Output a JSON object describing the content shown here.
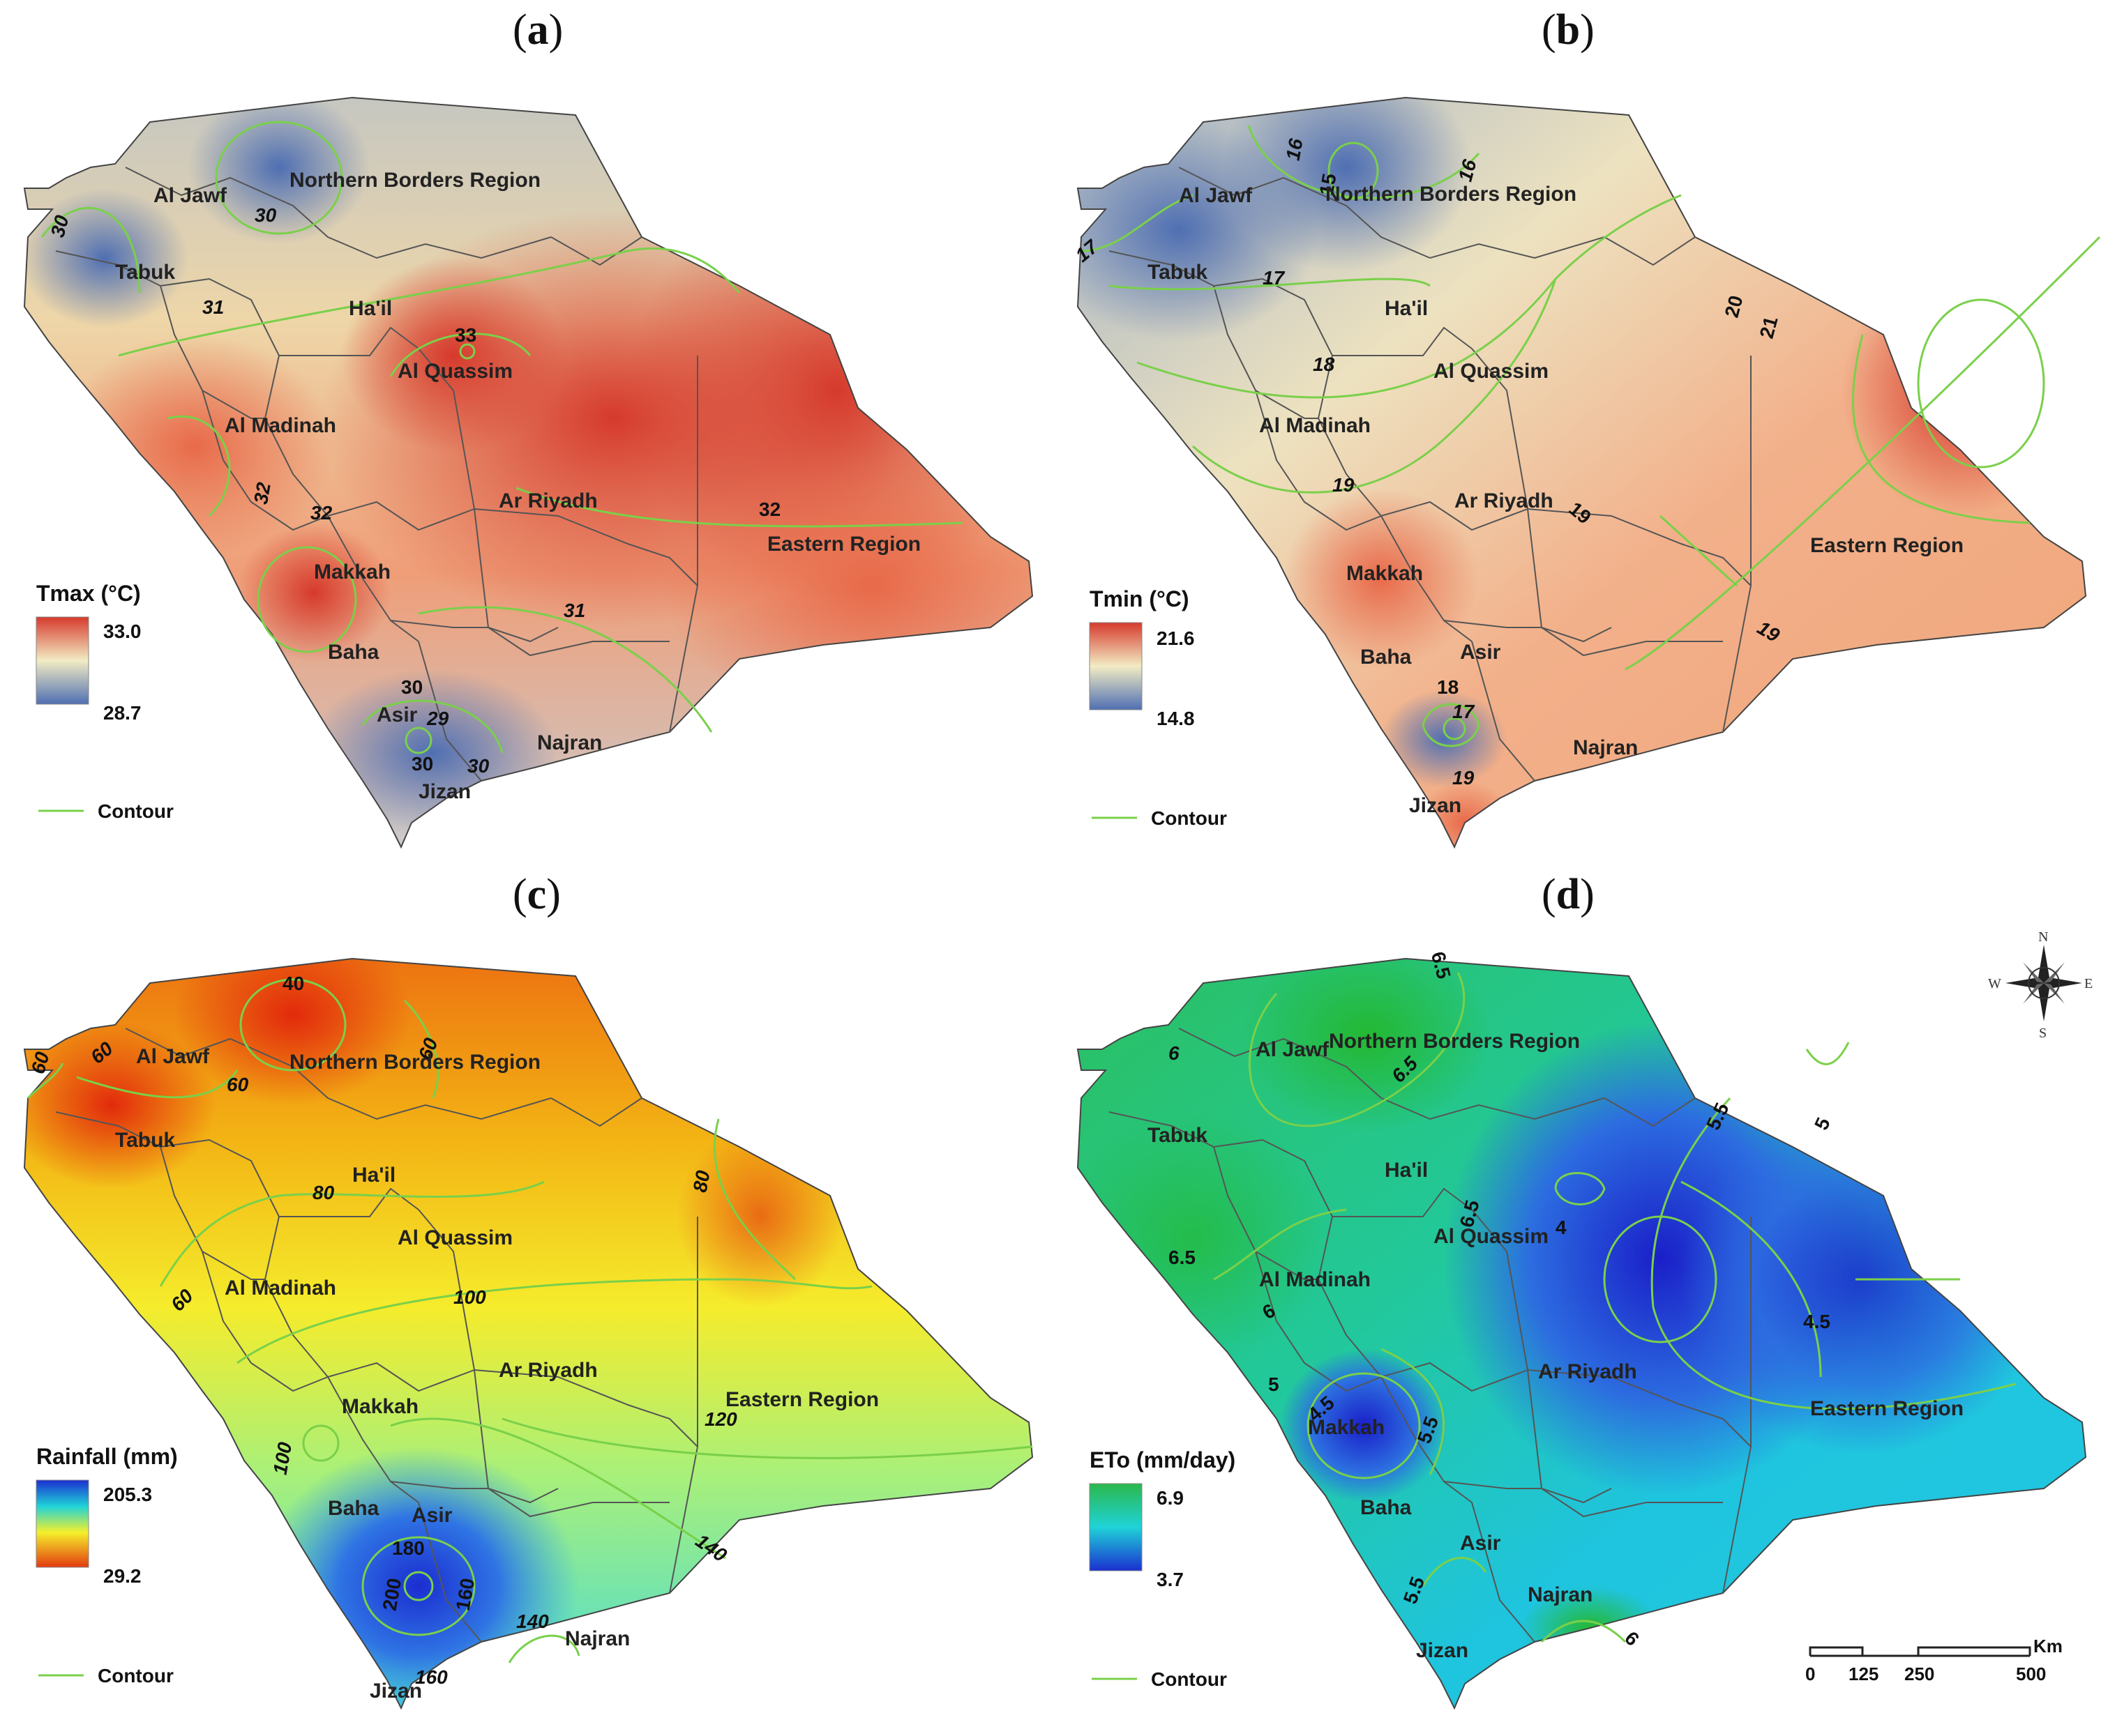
{
  "panels": [
    {
      "id": "a",
      "label": "a",
      "legend": {
        "title": "Tmax (°C)",
        "max": "33.0",
        "min": "28.7"
      },
      "colors": {
        "high": "#d94534",
        "mid": "#f2ecc4",
        "low": "#5979b5"
      },
      "contour_legend": "Contour",
      "regions": [
        "Al Jawf",
        "Northern Borders Region",
        "Tabuk",
        "Ha'il",
        "Al Quassim",
        "Al Madinah",
        "Ar Riyadh",
        "Eastern Region",
        "Makkah",
        "Baha",
        "Asir",
        "Najran",
        "Jizan"
      ],
      "contour_labels": [
        "30",
        "30",
        "31",
        "33",
        "32",
        "32",
        "32",
        "31",
        "30",
        "29",
        "30",
        "30"
      ]
    },
    {
      "id": "b",
      "label": "b",
      "legend": {
        "title": "Tmin (°C)",
        "max": "21.6",
        "min": "14.8"
      },
      "colors": {
        "high": "#d94534",
        "mid": "#f2ecc4",
        "low": "#5979b5"
      },
      "contour_legend": "Contour",
      "regions": [
        "Al Jawf",
        "Northern Borders Region",
        "Tabuk",
        "Ha'il",
        "Al Quassim",
        "Al Madinah",
        "Ar Riyadh",
        "Eastern Region",
        "Makkah",
        "Baha",
        "Asir",
        "Najran",
        "Jizan"
      ],
      "contour_labels": [
        "16",
        "15",
        "16",
        "17",
        "17",
        "18",
        "20",
        "21",
        "19",
        "19",
        "19",
        "18",
        "17",
        "19"
      ]
    },
    {
      "id": "c",
      "label": "c",
      "legend": {
        "title": "Rainfall (mm)",
        "max": "205.3",
        "min": "29.2"
      },
      "colors": {
        "high": "#1f3fd6",
        "mid": "#f5f02a",
        "low": "#e33a10"
      },
      "contour_legend": "Contour",
      "regions": [
        "Al Jawf",
        "Northern Borders Region",
        "Tabuk",
        "Ha'il",
        "Al Quassim",
        "Al Madinah",
        "Ar Riyadh",
        "Eastern Region",
        "Makkah",
        "Baha",
        "Asir",
        "Najran",
        "Jizan"
      ],
      "contour_labels": [
        "40",
        "60",
        "60",
        "60",
        "60",
        "80",
        "80",
        "60",
        "100",
        "120",
        "100",
        "140",
        "180",
        "200",
        "160",
        "140",
        "160"
      ]
    },
    {
      "id": "d",
      "label": "d",
      "legend": {
        "title": "ETo (mm/day)",
        "max": "6.9",
        "min": "3.7"
      },
      "colors": {
        "high": "#2bb84c",
        "mid": "#1fd3d8",
        "low": "#1a2fd0"
      },
      "contour_legend": "Contour",
      "regions": [
        "Al Jawf",
        "Northern Borders Region",
        "Tabuk",
        "Ha'il",
        "Al Quassim",
        "Al Madinah",
        "Ar Riyadh",
        "Eastern Region",
        "Makkah",
        "Baha",
        "Asir",
        "Najran",
        "Jizan"
      ],
      "contour_labels": [
        "6.5",
        "6",
        "6.5",
        "5.5",
        "5",
        "6.5",
        "4",
        "6.5",
        "6",
        "4.5",
        "5",
        "4.5",
        "5.5",
        "5.5",
        "6"
      ],
      "compass": {
        "n": "N",
        "s": "S",
        "e": "E",
        "w": "W"
      },
      "scale_bar": {
        "ticks": [
          "0",
          "125",
          "250",
          "500"
        ],
        "unit": "Km"
      }
    }
  ]
}
